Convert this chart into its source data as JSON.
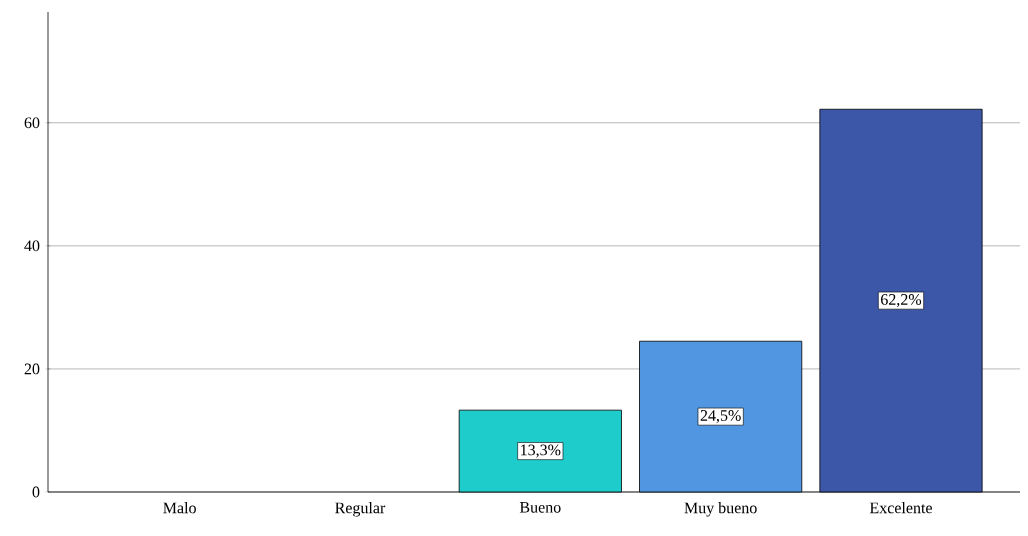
{
  "chart_data": {
    "type": "bar",
    "categories": [
      "Malo",
      "Regular",
      "Bueno",
      "Muy bueno",
      "Excelente"
    ],
    "values": [
      0,
      0,
      13.3,
      24.5,
      62.2
    ],
    "colors": [
      null,
      null,
      "#1fcccc",
      "#5096e0",
      "#3c57a8"
    ],
    "value_labels": [
      null,
      null,
      "13,3%",
      "24,5%",
      "62,2%"
    ],
    "ylim": [
      0,
      78
    ],
    "yticks": [
      0,
      20,
      40,
      60
    ],
    "grid": "y"
  }
}
